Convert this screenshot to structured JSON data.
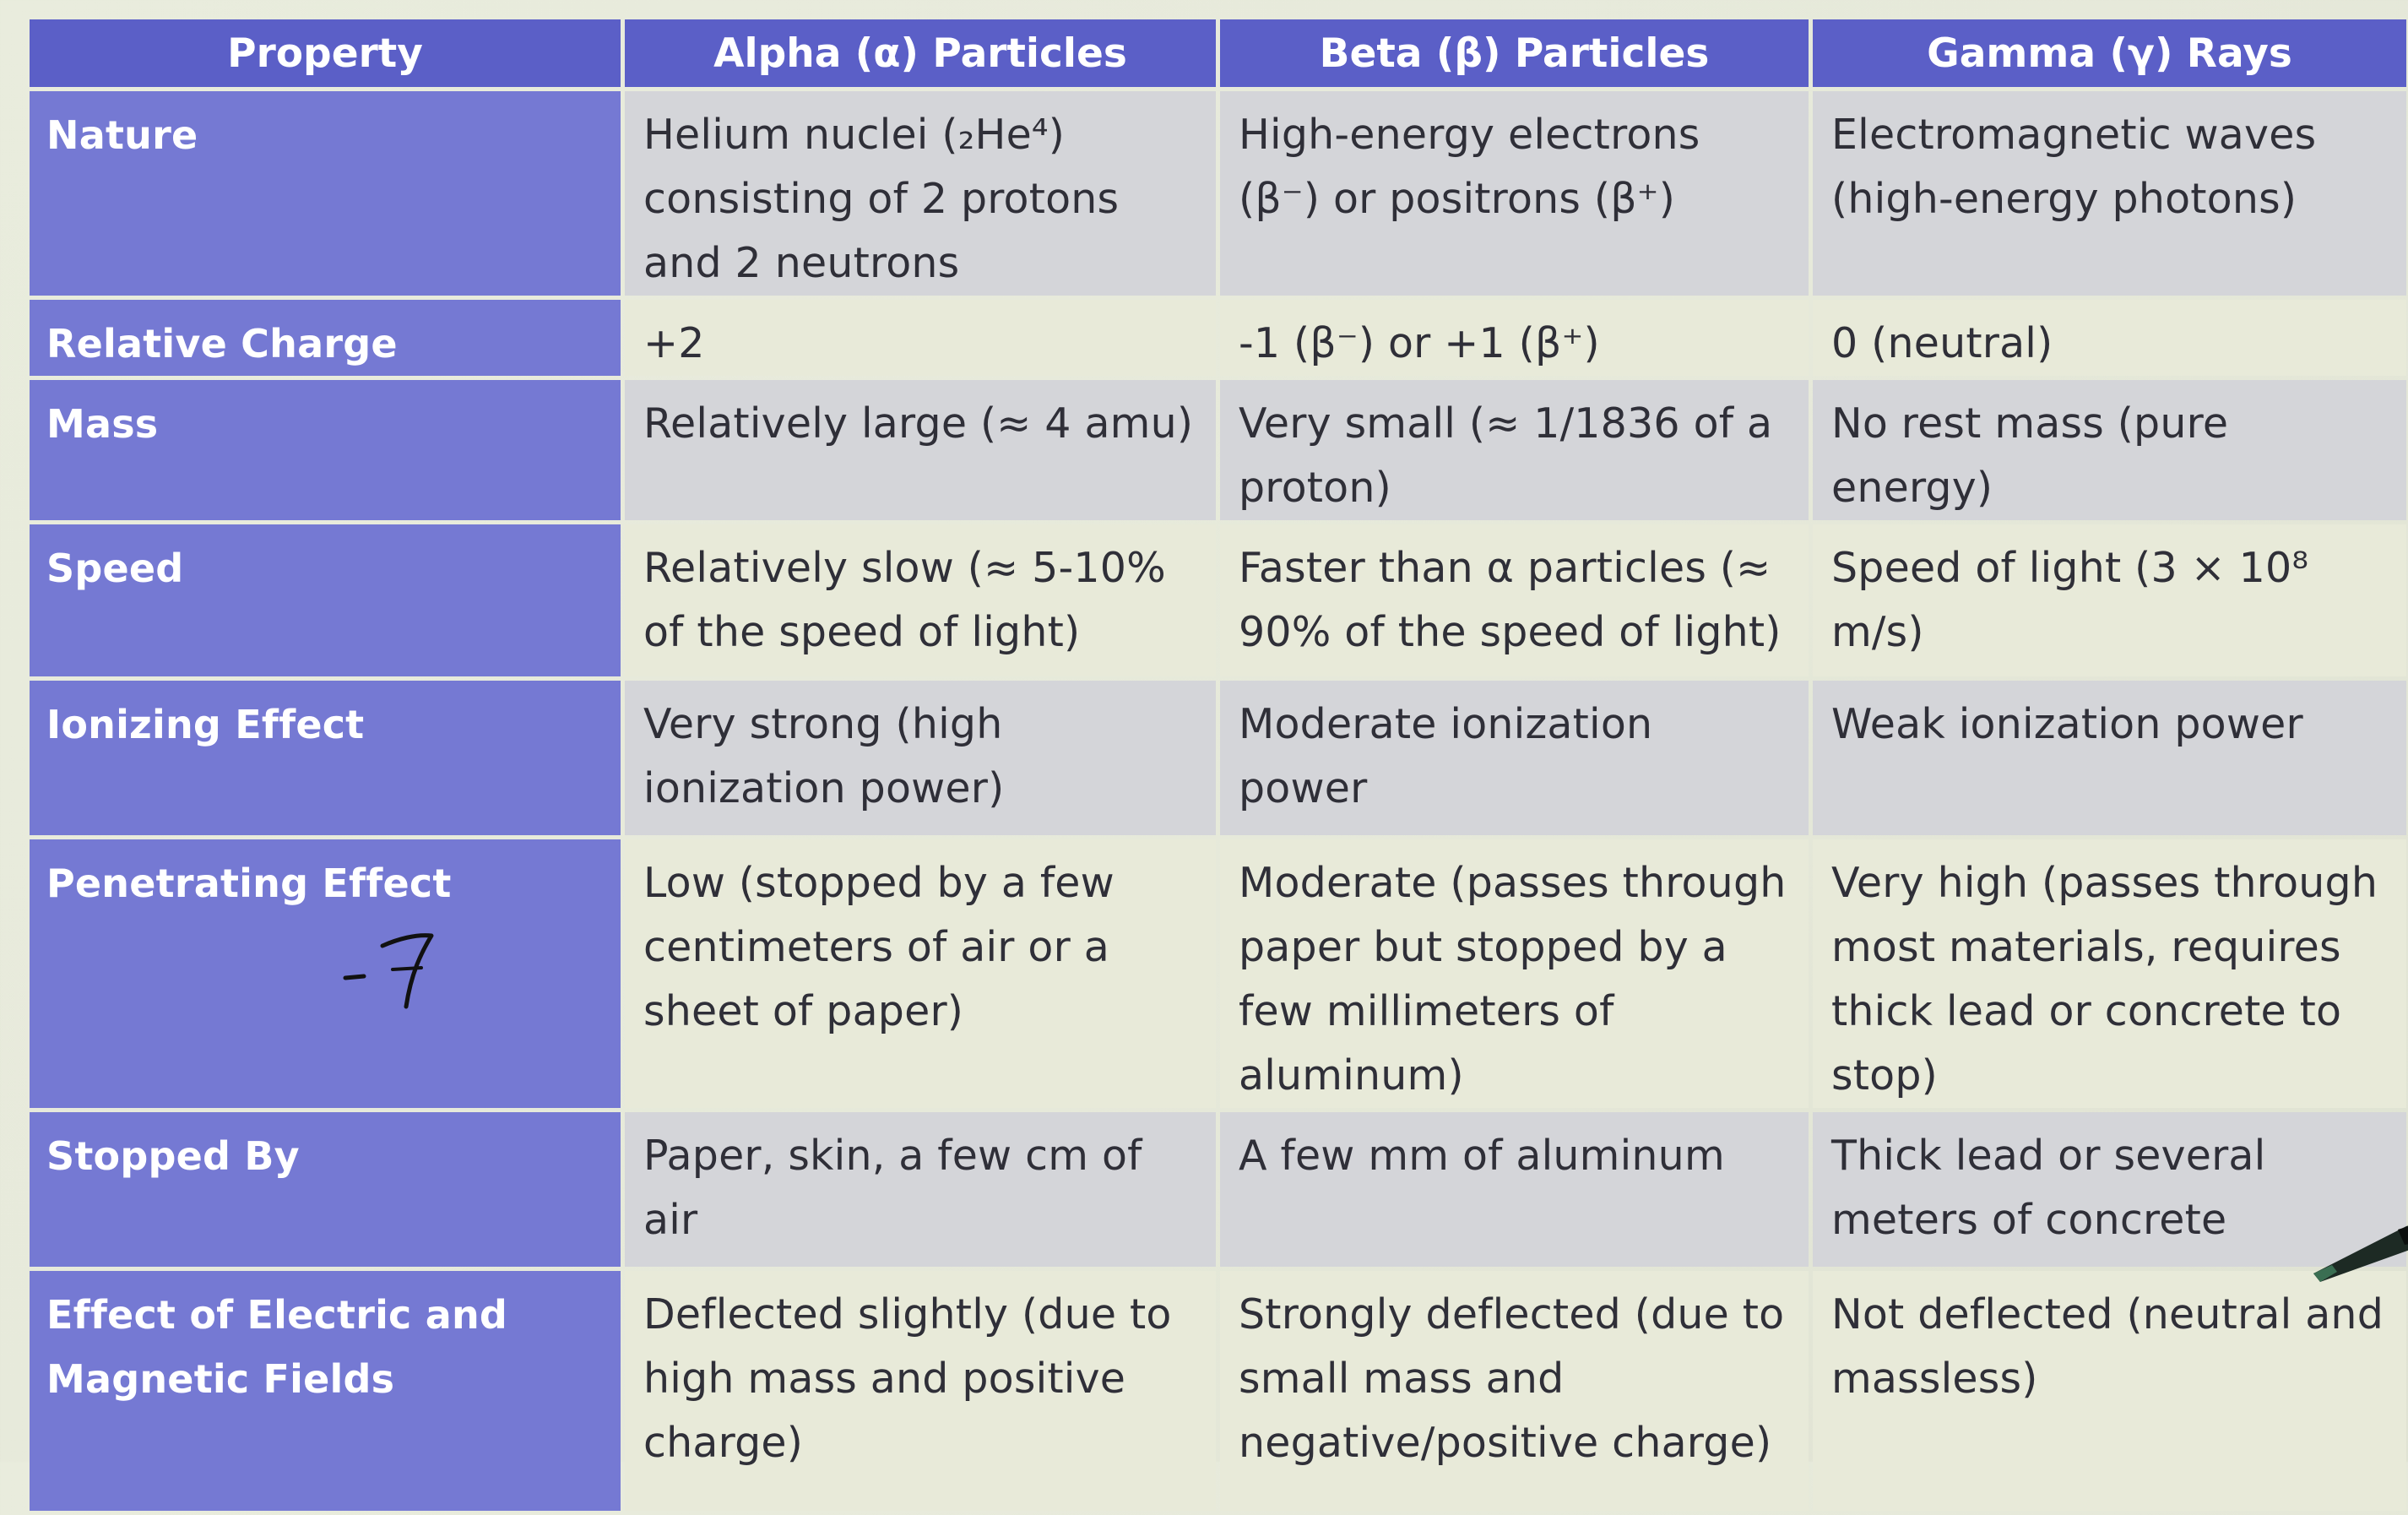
{
  "table": {
    "headers": [
      "Property",
      "Alpha (α) Particles",
      "Beta (β) Particles",
      "Gamma (γ) Rays"
    ],
    "rows": [
      {
        "property": "Nature",
        "alpha": "Helium nuclei (₂He⁴) consisting of 2 protons and 2 neutrons",
        "beta": "High-energy electrons (β⁻) or positrons (β⁺)",
        "gamma": "Electromagnetic waves (high-energy photons)"
      },
      {
        "property": "Relative Charge",
        "alpha": "+2",
        "beta": "-1 (β⁻) or +1 (β⁺)",
        "gamma": "0 (neutral)"
      },
      {
        "property": "Mass",
        "alpha": "Relatively large (≈ 4 amu)",
        "beta": "Very small (≈ 1/1836 of a proton)",
        "gamma": "No rest mass (pure energy)"
      },
      {
        "property": "Speed",
        "alpha": "Relatively slow (≈ 5-10% of the speed of light)",
        "beta": "Faster than α particles (≈ 90% of the speed of light)",
        "gamma": "Speed of light (3 × 10⁸ m/s)"
      },
      {
        "property": "Ionizing Effect",
        "alpha": "Very strong (high ionization power)",
        "beta": "Moderate ionization power",
        "gamma": "Weak ionization power"
      },
      {
        "property": "Penetrating Effect",
        "alpha": "Low (stopped by a few centimeters of air or a sheet of paper)",
        "beta": "Moderate (passes through paper but stopped by a few millimeters of aluminum)",
        "gamma": "Very high (passes through most materials, requires thick lead or concrete to stop)"
      },
      {
        "property": "Stopped By",
        "alpha": "Paper, skin, a few cm of air",
        "beta": "A few mm of aluminum",
        "gamma": "Thick lead or several meters of concrete"
      },
      {
        "property": "Effect of Electric and Magnetic Fields",
        "alpha": "Deflected slightly (due to high mass and positive charge)",
        "beta": "Strongly deflected (due to small mass and negative/positive charge)",
        "gamma": "Not deflected (neutral and massless)"
      }
    ]
  },
  "handwriting": "-7",
  "colors": {
    "header_bg": "#5b5fc7",
    "property_bg": "#7579d3",
    "row_gray": "#d4d5d9",
    "row_cream": "#e8ead9",
    "ink": "#111111"
  }
}
